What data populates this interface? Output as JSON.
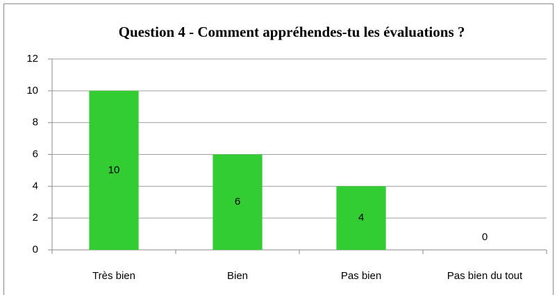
{
  "chart_data": {
    "type": "bar",
    "title": "Question 4 - Comment appréhendes-tu les évaluations ?",
    "categories": [
      "Très bien",
      "Bien",
      "Pas bien",
      "Pas bien du tout"
    ],
    "values": [
      10,
      6,
      4,
      0
    ],
    "color": "#33cc33",
    "ylim": [
      0,
      12
    ],
    "yticks": [
      0,
      2,
      4,
      6,
      8,
      10,
      12
    ],
    "grid": true
  }
}
